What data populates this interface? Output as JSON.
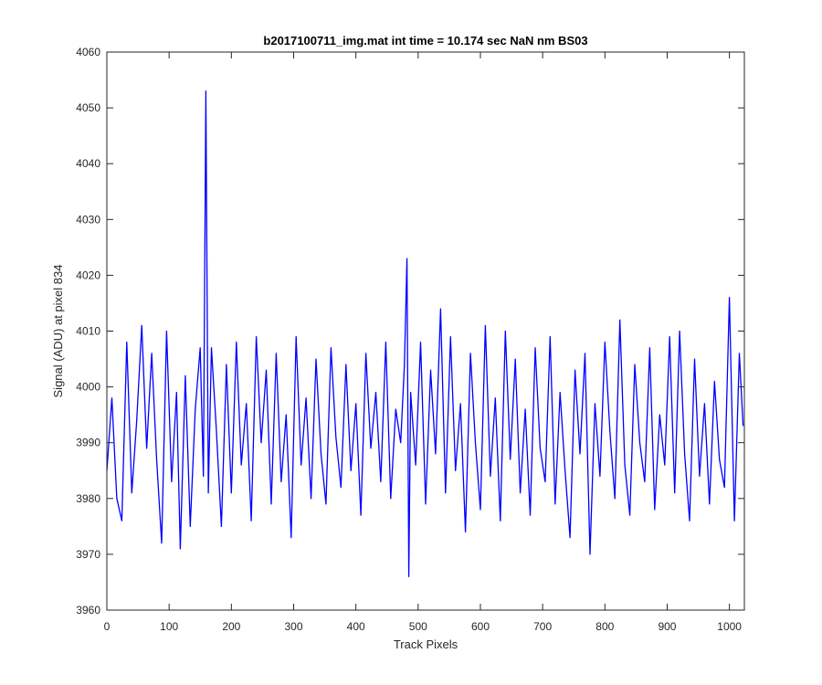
{
  "chart_data": {
    "type": "line",
    "title": "b2017100711_img.mat int time = 10.174 sec  NaN nm BS03",
    "xlabel": "Track Pixels",
    "ylabel": "Signal (ADU) at pixel 834",
    "xlim": [
      0,
      1024
    ],
    "ylim": [
      3960,
      4060
    ],
    "xticks": [
      0,
      100,
      200,
      300,
      400,
      500,
      600,
      700,
      800,
      900,
      1000
    ],
    "yticks": [
      3960,
      3970,
      3980,
      3990,
      4000,
      4010,
      4020,
      4030,
      4040,
      4050,
      4060
    ],
    "grid": false,
    "box": true,
    "series": [
      {
        "color": "#0000ff",
        "x": [
          0,
          8,
          16,
          24,
          32,
          40,
          48,
          56,
          64,
          72,
          80,
          88,
          96,
          104,
          112,
          118,
          126,
          134,
          142,
          150,
          155,
          159,
          163,
          168,
          176,
          184,
          192,
          200,
          208,
          216,
          224,
          232,
          240,
          248,
          256,
          264,
          272,
          280,
          288,
          296,
          304,
          312,
          320,
          328,
          336,
          344,
          352,
          360,
          368,
          376,
          384,
          392,
          400,
          408,
          416,
          424,
          432,
          440,
          448,
          456,
          464,
          472,
          478,
          482,
          485,
          488,
          496,
          504,
          512,
          520,
          528,
          536,
          544,
          552,
          560,
          568,
          576,
          584,
          592,
          600,
          608,
          616,
          624,
          632,
          640,
          648,
          656,
          664,
          672,
          680,
          688,
          696,
          704,
          712,
          720,
          728,
          736,
          744,
          752,
          760,
          768,
          776,
          784,
          792,
          800,
          808,
          816,
          824,
          832,
          840,
          848,
          856,
          864,
          872,
          880,
          888,
          896,
          904,
          912,
          920,
          928,
          936,
          944,
          952,
          960,
          968,
          976,
          984,
          992,
          1000,
          1008,
          1016,
          1022
        ],
        "values": [
          3985,
          3998,
          3980,
          3976,
          4008,
          3981,
          3994,
          4011,
          3989,
          4006,
          3987,
          3972,
          4010,
          3983,
          3999,
          3971,
          4002,
          3975,
          3996,
          4007,
          3984,
          4053,
          3981,
          4007,
          3992,
          3975,
          4004,
          3981,
          4008,
          3986,
          3997,
          3976,
          4009,
          3990,
          4003,
          3979,
          4006,
          3983,
          3995,
          3973,
          4009,
          3986,
          3998,
          3980,
          4005,
          3988,
          3979,
          4007,
          3991,
          3982,
          4004,
          3985,
          3997,
          3977,
          4006,
          3989,
          3999,
          3983,
          4008,
          3980,
          3996,
          3990,
          4004,
          4023,
          3966,
          3999,
          3986,
          4008,
          3979,
          4003,
          3988,
          4014,
          3981,
          4009,
          3985,
          3997,
          3974,
          4006,
          3990,
          3978,
          4011,
          3984,
          3998,
          3976,
          4010,
          3987,
          4005,
          3981,
          3996,
          3977,
          4007,
          3989,
          3983,
          4009,
          3979,
          3999,
          3985,
          3973,
          4003,
          3988,
          4006,
          3970,
          3997,
          3984,
          4008,
          3992,
          3980,
          4012,
          3986,
          3977,
          4004,
          3990,
          3983,
          4007,
          3978,
          3995,
          3986,
          4009,
          3981,
          4010,
          3988,
          3976,
          4005,
          3984,
          3997,
          3979,
          4001,
          3987,
          3982,
          4016,
          3976,
          4006,
          3993
        ]
      }
    ]
  }
}
